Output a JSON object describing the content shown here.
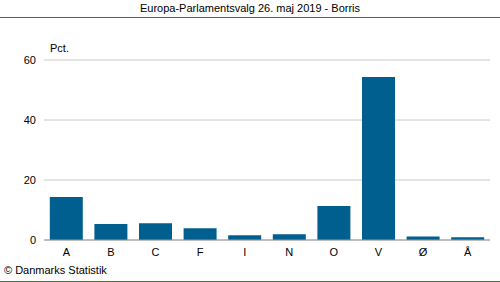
{
  "chart_data": {
    "type": "bar",
    "title": "Europa-Parlamentsvalg 26. maj 2019 - Borris",
    "y_label": "Pct.",
    "source": "© Danmarks Statistik",
    "categories": [
      "A",
      "B",
      "C",
      "F",
      "I",
      "N",
      "O",
      "V",
      "Ø",
      "Å"
    ],
    "values": [
      14.3,
      5.3,
      5.6,
      3.9,
      1.6,
      1.9,
      11.3,
      54.3,
      1.2,
      0.9
    ],
    "color": "#005f8f",
    "ylim": [
      0,
      60
    ],
    "yticks": [
      0,
      20,
      40,
      60
    ],
    "grid": true
  }
}
